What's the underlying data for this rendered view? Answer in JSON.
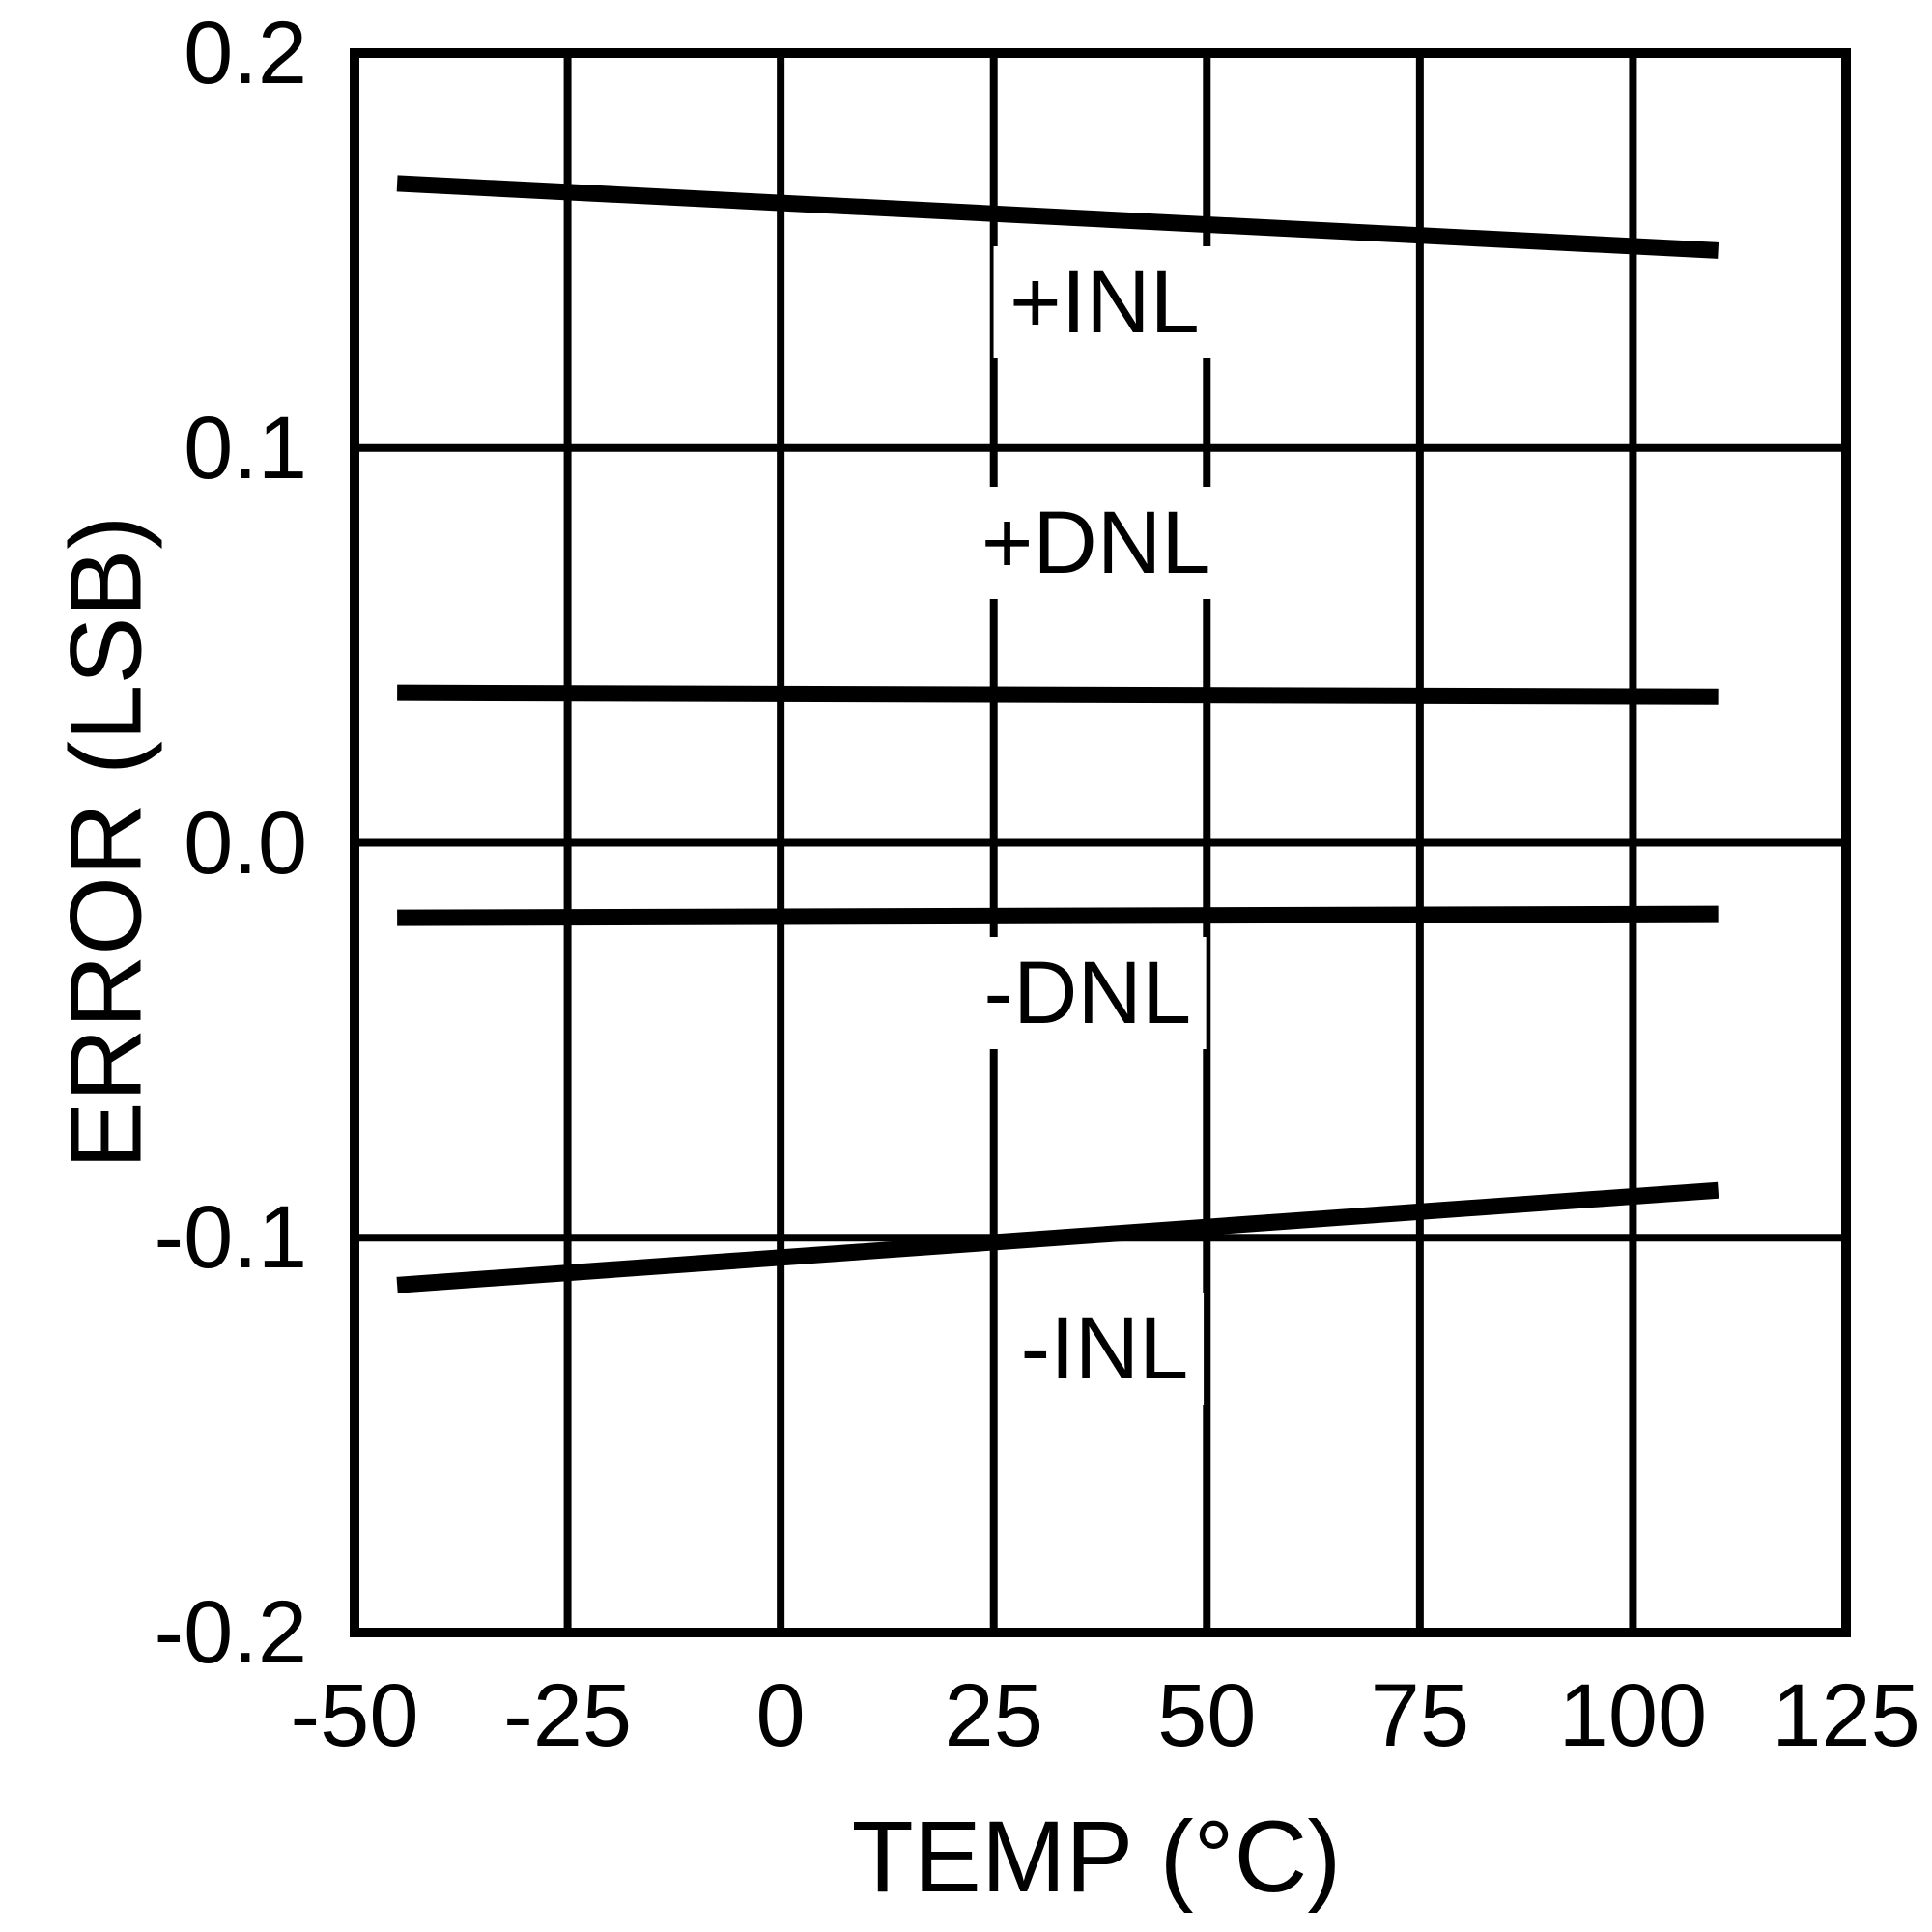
{
  "figure": {
    "background_color": "#ffffff",
    "line_color": "#000000"
  },
  "chart_data": {
    "type": "line",
    "title": "",
    "xlabel": "TEMP (°C)",
    "ylabel": "ERROR (LSB)",
    "xlim": [
      -50,
      125
    ],
    "ylim": [
      -0.2,
      0.2
    ],
    "grid": true,
    "x_ticks": [
      -50,
      -25,
      0,
      25,
      50,
      75,
      100,
      125
    ],
    "x_tick_labels": [
      "-50",
      "-25",
      "0",
      "25",
      "50",
      "75",
      "100",
      "125"
    ],
    "y_ticks": [
      0.2,
      0.1,
      0.0,
      -0.1,
      -0.2
    ],
    "y_tick_labels": [
      "0.2",
      "0.1",
      "0.0",
      "-0.1",
      "-0.2"
    ],
    "series": [
      {
        "name": "+INL",
        "points": [
          [
            -45,
            0.167
          ],
          [
            110,
            0.15
          ]
        ],
        "label_pos": [
          38,
          0.137
        ]
      },
      {
        "name": "+DNL",
        "points": [
          [
            -45,
            0.038
          ],
          [
            110,
            0.037
          ]
        ],
        "label_pos": [
          37,
          0.076
        ]
      },
      {
        "name": "-DNL",
        "points": [
          [
            -45,
            -0.019
          ],
          [
            110,
            -0.018
          ]
        ],
        "label_pos": [
          36,
          -0.038
        ]
      },
      {
        "name": "-INL",
        "points": [
          [
            -45,
            -0.112
          ],
          [
            110,
            -0.088
          ]
        ],
        "label_pos": [
          38,
          -0.128
        ]
      }
    ]
  }
}
